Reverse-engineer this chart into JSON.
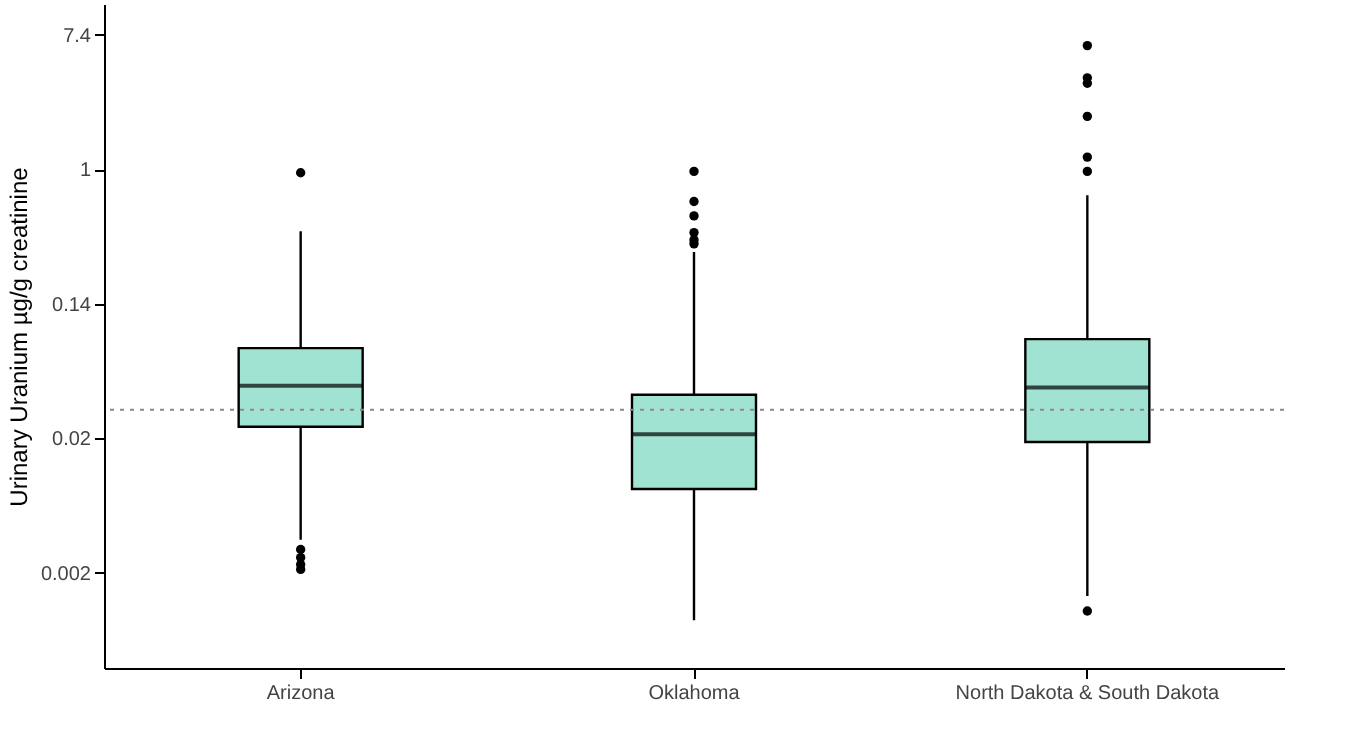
{
  "chart_data": {
    "type": "box",
    "ylabel": "Urinary Uranium µg/g creatinine",
    "categories": [
      "Arizona",
      "Oklahoma",
      "North Dakota & South Dakota"
    ],
    "boxes": [
      {
        "low": 0.00404,
        "q1": 0.0217,
        "median": 0.04,
        "q3": 0.07,
        "high": 0.398,
        "outliers": [
          0.95,
          0.0035,
          0.0031,
          0.0028,
          0.0026
        ]
      },
      {
        "low": 0.00122,
        "q1": 0.0086,
        "median": 0.0194,
        "q3": 0.035,
        "high": 0.292,
        "outliers": [
          0.97,
          0.62,
          0.5,
          0.39,
          0.35,
          0.33
        ]
      },
      {
        "low": 0.00175,
        "q1": 0.0173,
        "median": 0.039,
        "q3": 0.08,
        "high": 0.68,
        "outliers": [
          6.3,
          3.9,
          3.6,
          2.2,
          1.2,
          0.97,
          0.0014
        ]
      }
    ],
    "color": "#a0e3d3",
    "log": true,
    "grid": false,
    "ylim": [
      0.0006,
      11.7
    ],
    "yticks": [
      {
        "value": 0.00248,
        "label": "0.002"
      },
      {
        "value": 0.0183,
        "label": "0.02"
      },
      {
        "value": 0.1353,
        "label": "0.14"
      },
      1,
      {
        "value": 7.389,
        "label": "7.4"
      }
    ],
    "ref_lines": [
      {
        "axis": "y",
        "value": 0.028,
        "line_style": "dotted",
        "color": "#888888"
      }
    ]
  }
}
